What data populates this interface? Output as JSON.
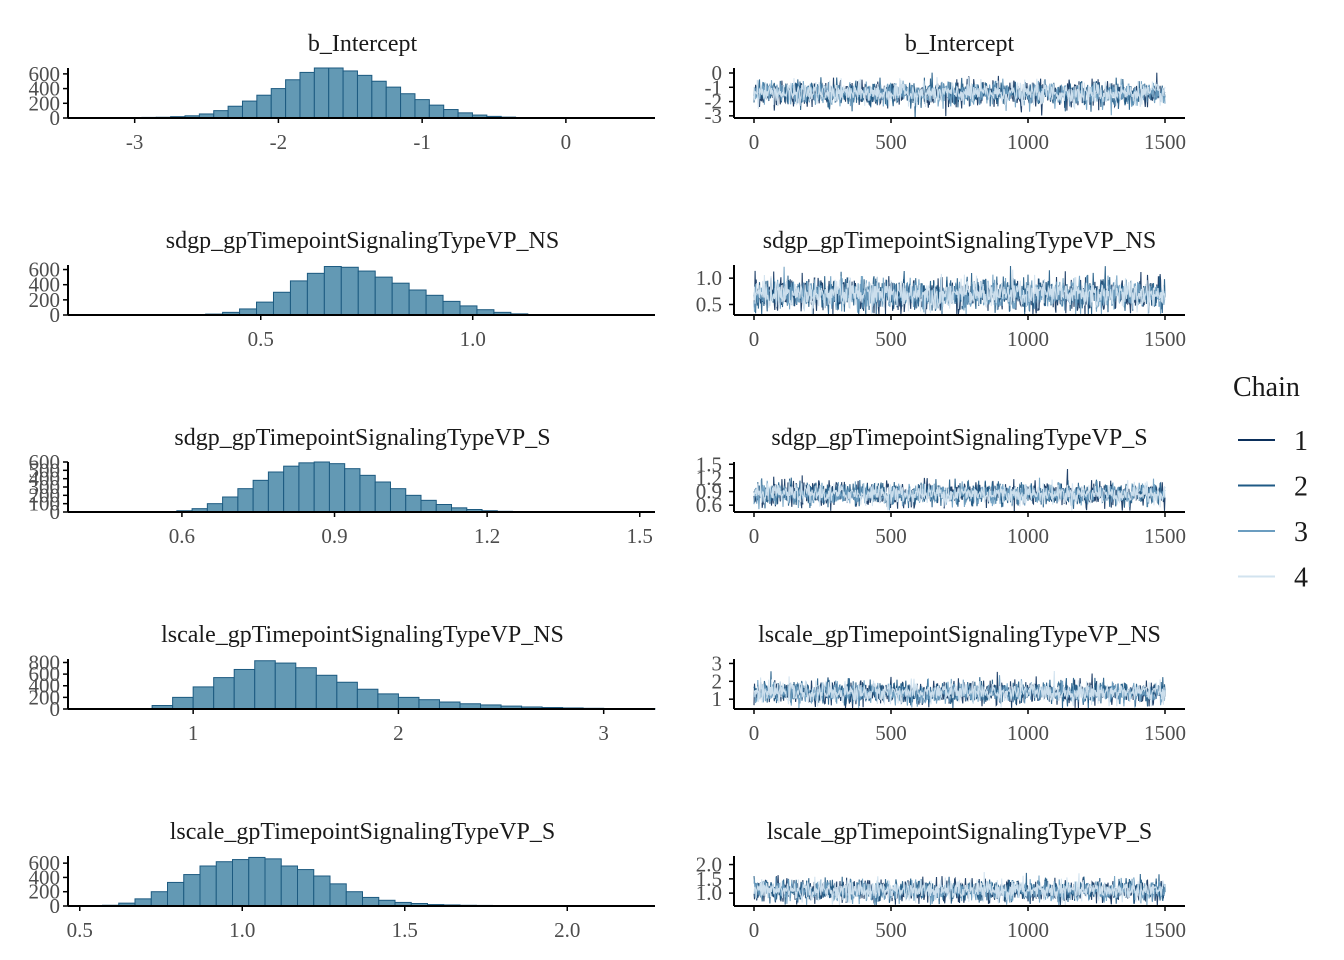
{
  "legend": {
    "title": "Chain",
    "entries": [
      "1",
      "2",
      "3",
      "4"
    ],
    "colors": [
      "#0b2f5b",
      "#1f5a85",
      "#6b9dc0",
      "#d2e3ef"
    ]
  },
  "colors": {
    "hist_fill": "#6399b4",
    "hist_stroke": "#1c5a80",
    "axis": "#000000",
    "tick_label": "#4d4d4d",
    "title": "#1a1a1a"
  },
  "chart_data": [
    {
      "type": "bar",
      "title": "b_Intercept",
      "xlim": [
        -3.45,
        0.62
      ],
      "ylim": [
        0,
        680
      ],
      "xticks": [
        -3,
        -2,
        -1,
        0
      ],
      "xtick_labels": [
        "-3",
        "-2",
        "-1",
        "0"
      ],
      "yticks": [
        0,
        200,
        400,
        600
      ],
      "ytick_labels": [
        "0",
        "200",
        "400",
        "600"
      ],
      "bin_start": -3.45,
      "bin_width": 0.1,
      "values": [
        1,
        2,
        3,
        4,
        5,
        8,
        10,
        18,
        30,
        55,
        100,
        160,
        230,
        310,
        400,
        520,
        620,
        680,
        680,
        640,
        580,
        500,
        420,
        330,
        250,
        175,
        115,
        70,
        40,
        22,
        12,
        6,
        3,
        2,
        1,
        1,
        0,
        0,
        0,
        0
      ]
    },
    {
      "type": "bar",
      "title": "sdgp_gpTimepointSignalingTypeVP_NS",
      "xlim": [
        0.05,
        1.43
      ],
      "ylim": [
        0,
        660
      ],
      "xticks": [
        0.5,
        1.0
      ],
      "xtick_labels": [
        "0.5",
        "1.0"
      ],
      "yticks": [
        0,
        200,
        400,
        600
      ],
      "ytick_labels": [
        "0",
        "200",
        "400",
        "600"
      ],
      "bin_start": 0.05,
      "bin_width": 0.04,
      "values": [
        0,
        0,
        0,
        0,
        0,
        0,
        0,
        3,
        12,
        35,
        80,
        170,
        300,
        450,
        550,
        640,
        630,
        580,
        500,
        420,
        330,
        260,
        180,
        120,
        70,
        35,
        15,
        6,
        3,
        1,
        0,
        0,
        0,
        0,
        0
      ]
    },
    {
      "type": "bar",
      "title": "sdgp_gpTimepointSignalingTypeVP_S",
      "xlim": [
        0.38,
        1.53
      ],
      "ylim": [
        0,
        600
      ],
      "xticks": [
        0.6,
        0.9,
        1.2,
        1.5
      ],
      "xtick_labels": [
        "0.6",
        "0.9",
        "1.2",
        "1.5"
      ],
      "yticks": [
        0,
        100,
        200,
        300,
        400,
        500,
        600
      ],
      "ytick_labels": [
        "0",
        "100",
        "200",
        "300",
        "400",
        "500",
        "600"
      ],
      "bin_start": 0.38,
      "bin_width": 0.03,
      "values": [
        0,
        0,
        0,
        0,
        0,
        0,
        5,
        15,
        40,
        100,
        180,
        280,
        380,
        480,
        550,
        590,
        600,
        580,
        520,
        440,
        360,
        280,
        200,
        140,
        90,
        50,
        30,
        15,
        8,
        3,
        2,
        1,
        0,
        0,
        0,
        0,
        0,
        0
      ]
    },
    {
      "type": "bar",
      "title": "lscale_gpTimepointSignalingTypeVP_NS",
      "xlim": [
        0.4,
        3.25
      ],
      "ylim": [
        0,
        860
      ],
      "xticks": [
        1,
        2,
        3
      ],
      "xtick_labels": [
        "1",
        "2",
        "3"
      ],
      "yticks": [
        0,
        200,
        400,
        600,
        800
      ],
      "ytick_labels": [
        "0",
        "200",
        "400",
        "600",
        "800"
      ],
      "bin_start": 0.4,
      "bin_width": 0.1,
      "values": [
        0,
        0,
        0,
        5,
        60,
        200,
        380,
        540,
        680,
        830,
        790,
        710,
        580,
        460,
        340,
        260,
        200,
        160,
        120,
        90,
        70,
        50,
        35,
        25,
        18,
        12,
        8,
        6,
        4,
        3,
        2,
        2,
        1,
        1,
        1,
        1,
        1,
        0,
        0,
        0
      ]
    },
    {
      "type": "bar",
      "title": "lscale_gpTimepointSignalingTypeVP_S",
      "xlim": [
        0.47,
        2.27
      ],
      "ylim": [
        0,
        700
      ],
      "xticks": [
        0.5,
        1.0,
        1.5,
        2.0
      ],
      "xtick_labels": [
        "0.5",
        "1.0",
        "1.5",
        "2.0"
      ],
      "yticks": [
        0,
        200,
        400,
        600
      ],
      "ytick_labels": [
        "0",
        "200",
        "400",
        "600"
      ],
      "bin_start": 0.47,
      "bin_width": 0.05,
      "values": [
        0,
        2,
        10,
        40,
        100,
        200,
        330,
        440,
        560,
        620,
        650,
        680,
        660,
        560,
        510,
        420,
        310,
        200,
        120,
        80,
        50,
        35,
        20,
        15,
        10,
        8,
        6,
        5,
        4,
        3,
        2,
        1,
        1,
        0,
        0,
        0
      ]
    },
    {
      "type": "line",
      "title": "b_Intercept",
      "xlim": [
        -75,
        1575
      ],
      "ylim": [
        -3.15,
        0.35
      ],
      "xticks": [
        0,
        500,
        1000,
        1500
      ],
      "xtick_labels": [
        "0",
        "500",
        "1000",
        "1500"
      ],
      "yticks": [
        0,
        -1,
        -2,
        -3
      ],
      "ytick_labels": [
        "0",
        "-1",
        "-2",
        "-3"
      ],
      "iterations": 1500,
      "series": [
        {
          "name": "1",
          "mean": -1.45,
          "sd": 0.45
        },
        {
          "name": "2",
          "mean": -1.4,
          "sd": 0.45
        },
        {
          "name": "3",
          "mean": -1.45,
          "sd": 0.4
        },
        {
          "name": "4",
          "mean": -1.4,
          "sd": 0.38
        }
      ]
    },
    {
      "type": "line",
      "title": "sdgp_gpTimepointSignalingTypeVP_NS",
      "xlim": [
        -75,
        1575
      ],
      "ylim": [
        0.3,
        1.25
      ],
      "xticks": [
        0,
        500,
        1000,
        1500
      ],
      "xtick_labels": [
        "0",
        "500",
        "1000",
        "1500"
      ],
      "yticks": [
        0.5,
        1.0
      ],
      "ytick_labels": [
        "0.5",
        "1.0"
      ],
      "iterations": 1500,
      "series": [
        {
          "name": "1",
          "mean": 0.68,
          "sd": 0.16
        },
        {
          "name": "2",
          "mean": 0.7,
          "sd": 0.16
        },
        {
          "name": "3",
          "mean": 0.68,
          "sd": 0.15
        },
        {
          "name": "4",
          "mean": 0.7,
          "sd": 0.14
        }
      ]
    },
    {
      "type": "line",
      "title": "sdgp_gpTimepointSignalingTypeVP_S",
      "xlim": [
        -75,
        1575
      ],
      "ylim": [
        0.45,
        1.55
      ],
      "xticks": [
        0,
        500,
        1000,
        1500
      ],
      "xtick_labels": [
        "0",
        "500",
        "1000",
        "1500"
      ],
      "yticks": [
        0.6,
        0.9,
        1.2,
        1.5
      ],
      "ytick_labels": [
        "0.6",
        "0.9",
        "1.2",
        "1.5"
      ],
      "iterations": 1500,
      "series": [
        {
          "name": "1",
          "mean": 0.84,
          "sd": 0.13
        },
        {
          "name": "2",
          "mean": 0.85,
          "sd": 0.13
        },
        {
          "name": "3",
          "mean": 0.84,
          "sd": 0.12
        },
        {
          "name": "4",
          "mean": 0.85,
          "sd": 0.11
        }
      ]
    },
    {
      "type": "line",
      "title": "lscale_gpTimepointSignalingTypeVP_NS",
      "xlim": [
        -75,
        1575
      ],
      "ylim": [
        0.45,
        3.25
      ],
      "xticks": [
        0,
        500,
        1000,
        1500
      ],
      "xtick_labels": [
        "0",
        "500",
        "1000",
        "1500"
      ],
      "yticks": [
        1,
        2,
        3
      ],
      "ytick_labels": [
        "1",
        "2",
        "3"
      ],
      "iterations": 1500,
      "series": [
        {
          "name": "1",
          "mean": 1.35,
          "sd": 0.33
        },
        {
          "name": "2",
          "mean": 1.38,
          "sd": 0.33
        },
        {
          "name": "3",
          "mean": 1.35,
          "sd": 0.3
        },
        {
          "name": "4",
          "mean": 1.38,
          "sd": 0.28
        }
      ]
    },
    {
      "type": "line",
      "title": "lscale_gpTimepointSignalingTypeVP_S",
      "xlim": [
        -75,
        1575
      ],
      "ylim": [
        0.55,
        2.3
      ],
      "xticks": [
        0,
        500,
        1000,
        1500
      ],
      "xtick_labels": [
        "0",
        "500",
        "1000",
        "1500"
      ],
      "yticks": [
        1.0,
        1.5,
        2.0
      ],
      "ytick_labels": [
        "1.0",
        "1.5",
        "2.0"
      ],
      "iterations": 1500,
      "series": [
        {
          "name": "1",
          "mean": 1.08,
          "sd": 0.2
        },
        {
          "name": "2",
          "mean": 1.1,
          "sd": 0.2
        },
        {
          "name": "3",
          "mean": 1.08,
          "sd": 0.19
        },
        {
          "name": "4",
          "mean": 1.1,
          "sd": 0.18
        }
      ]
    }
  ]
}
